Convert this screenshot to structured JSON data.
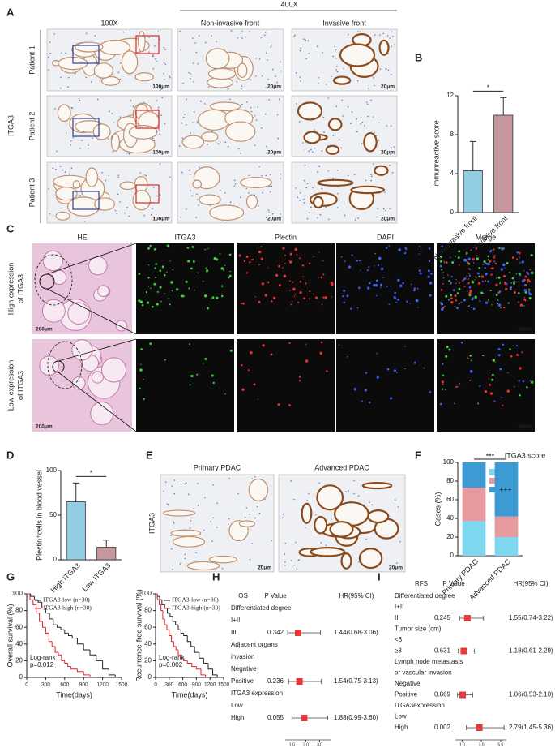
{
  "figure": {
    "panel_labels": [
      "A",
      "B",
      "C",
      "D",
      "E",
      "F",
      "G",
      "H",
      "I"
    ],
    "a": {
      "mag_low": "100X",
      "mag_high": "400X",
      "col_noninvasive": "Non-invasive front",
      "col_invasive": "Invasive front",
      "stain": "ITGA3",
      "patients": [
        "Patient 1",
        "Patient 2",
        "Patient 3"
      ],
      "scale_low": "100μm",
      "scale_high": "20μm"
    },
    "c": {
      "columns": [
        "HE",
        "ITGA3",
        "Plectin",
        "DAPI",
        "Merge"
      ],
      "rows": [
        [
          "High expression",
          "of ITGA3"
        ],
        [
          "Low expression",
          "of ITGA3"
        ]
      ],
      "scale_he": "200μm",
      "scale_if": "20μm"
    },
    "e": {
      "columns": [
        "Primary PDAC",
        "Advanced PDAC"
      ],
      "stain": "ITGA3",
      "scale": "20μm"
    }
  },
  "chart_data": [
    {
      "type": "bar",
      "ylabel": "Immunreactive score",
      "categories": [
        "Non-invasive front",
        "Invasive front"
      ],
      "values": [
        4.3,
        10
      ],
      "errors": [
        3,
        1.8
      ],
      "colors": [
        "#92cde3",
        "#c6979c"
      ],
      "ylim": [
        0,
        12
      ],
      "yticks": [
        0,
        4,
        8,
        12
      ],
      "significance": "*"
    },
    {
      "type": "bar",
      "ylabel": "Plectin⁺cells in blood vessel",
      "categories": [
        "High ITGA3",
        "Low ITGA3"
      ],
      "values": [
        65,
        14
      ],
      "errors": [
        21,
        8
      ],
      "colors": [
        "#92cde3",
        "#c6979c"
      ],
      "ylim": [
        0,
        100
      ],
      "yticks": [
        0,
        50,
        100
      ],
      "significance": "*"
    },
    {
      "type": "stacked_bar",
      "ylabel": "Cases (%)",
      "categories": [
        "Primary PDAC",
        "Advanced PDAC"
      ],
      "legend_title": "ITGA3 score",
      "series": [
        {
          "name": "+",
          "color": "#7fd7ef",
          "values": [
            37,
            20
          ]
        },
        {
          "name": "++",
          "color": "#e79aa0",
          "values": [
            36,
            22
          ]
        },
        {
          "name": "+++",
          "color": "#3d9bd4",
          "values": [
            27,
            58
          ]
        }
      ],
      "ylim": [
        0,
        100
      ],
      "yticks": [
        0,
        20,
        40,
        60,
        80,
        100
      ],
      "significance": "***"
    },
    {
      "type": "km",
      "ylabel": "Overall survival (%)",
      "xlabel": "Time(days)",
      "xlim": [
        0,
        1500
      ],
      "xticks": [
        0,
        300,
        600,
        900,
        1200,
        1500
      ],
      "ylim": [
        0,
        100
      ],
      "yticks": [
        0,
        20,
        40,
        60,
        80,
        100
      ],
      "series": [
        {
          "name": "ITGA3-low (n=30)",
          "color": "#222222",
          "x": [
            0,
            60,
            120,
            180,
            240,
            300,
            360,
            420,
            480,
            540,
            600,
            660,
            720,
            800,
            900,
            1000,
            1100,
            1200,
            1300,
            1400
          ],
          "values": [
            100,
            97,
            93,
            90,
            83,
            77,
            70,
            63,
            60,
            57,
            53,
            50,
            47,
            40,
            33,
            27,
            20,
            10,
            3,
            0
          ]
        },
        {
          "name": "ITGA3-high (n=30)",
          "color": "#e0242a",
          "x": [
            0,
            50,
            100,
            150,
            200,
            250,
            300,
            350,
            400,
            450,
            500,
            550,
            600,
            650,
            700,
            800,
            900,
            1000
          ],
          "values": [
            100,
            93,
            87,
            77,
            67,
            60,
            53,
            43,
            37,
            30,
            27,
            20,
            17,
            13,
            10,
            7,
            3,
            0
          ]
        }
      ],
      "annotation": [
        "Log-rank",
        "p=0.012"
      ]
    },
    {
      "type": "km",
      "ylabel": "Recurrence-free survival (%)",
      "xlabel": "Time(days)",
      "xlim": [
        0,
        1500
      ],
      "xticks": [
        0,
        300,
        600,
        900,
        1200,
        1500
      ],
      "ylim": [
        0,
        100
      ],
      "yticks": [
        0,
        20,
        40,
        60,
        80,
        100
      ],
      "series": [
        {
          "name": "ITGA3-low (n=30)",
          "color": "#222222",
          "x": [
            0,
            40,
            90,
            140,
            200,
            260,
            320,
            380,
            440,
            500,
            560,
            620,
            700,
            780,
            860,
            960,
            1060,
            1160,
            1260,
            1360
          ],
          "values": [
            100,
            97,
            93,
            87,
            83,
            77,
            73,
            67,
            63,
            57,
            53,
            50,
            43,
            37,
            30,
            23,
            17,
            10,
            3,
            0
          ]
        },
        {
          "name": "ITGA3-high (n=30)",
          "color": "#e0242a",
          "x": [
            0,
            40,
            80,
            120,
            160,
            200,
            250,
            300,
            350,
            400,
            450,
            500,
            560,
            620,
            700,
            800,
            900,
            1000,
            1100
          ],
          "values": [
            100,
            93,
            87,
            80,
            70,
            63,
            57,
            50,
            43,
            37,
            33,
            27,
            23,
            20,
            17,
            13,
            10,
            3,
            0
          ]
        }
      ],
      "annotation": [
        "Log-rank",
        "p=0.002"
      ]
    },
    {
      "type": "forest",
      "headers": [
        "OS",
        "P Value",
        "HR(95% CI)"
      ],
      "color": "#e2393b",
      "xlim": [
        0.5,
        3.8
      ],
      "xticks": [
        {
          "value": 1,
          "label": "1.0"
        },
        {
          "value": 2,
          "label": "2.0"
        },
        {
          "value": 3,
          "label": "3.0"
        }
      ],
      "rows": [
        {
          "label": "Differentiated degree"
        },
        {
          "label": "I+II"
        },
        {
          "label": "III",
          "p": 0.342,
          "hr": 1.44,
          "lo": 0.68,
          "hi": 3.06,
          "hr_label": "1.44(0.68-3.06)"
        },
        {
          "label": "Adjacent organs"
        },
        {
          "label": "invasion"
        },
        {
          "label": "Negative"
        },
        {
          "label": "Positive",
          "p": 0.236,
          "hr": 1.54,
          "lo": 0.75,
          "hi": 3.13,
          "hr_label": "1.54(0.75-3.13)"
        },
        {
          "label": "ITGA3 expression"
        },
        {
          "label": "Low"
        },
        {
          "label": "High",
          "p": 0.055,
          "hr": 1.88,
          "lo": 0.99,
          "hi": 3.6,
          "hr_label": "1.88(0.99-3.60)"
        }
      ]
    },
    {
      "type": "forest",
      "headers": [
        "RFS",
        "P Value",
        "HR(95% CI)"
      ],
      "color": "#e2393b",
      "xlim": [
        0.3,
        5.6
      ],
      "xticks": [
        {
          "value": 1,
          "label": "1.0"
        },
        {
          "value": 3,
          "label": "3.0"
        },
        {
          "value": 5,
          "label": "5.0"
        }
      ],
      "rows": [
        {
          "label": "Differentiated degree"
        },
        {
          "label": "I+II"
        },
        {
          "label": "III",
          "p": 0.245,
          "hr": 1.55,
          "lo": 0.74,
          "hi": 3.22,
          "hr_label": "1.55(0.74-3.22)"
        },
        {
          "label": "Tumor size (cm)"
        },
        {
          "label": "<3"
        },
        {
          "label": "≥3",
          "p": 0.631,
          "hr": 1.18,
          "lo": 0.61,
          "hi": 2.29,
          "hr_label": "1.18(0.61-2.29)"
        },
        {
          "label": "Lymph node metastasis"
        },
        {
          "label": "or vascular invasion"
        },
        {
          "label": "Negative"
        },
        {
          "label": "Positive",
          "p": 0.869,
          "hr": 1.06,
          "lo": 0.53,
          "hi": 2.1,
          "hr_label": "1.06(0.53-2.10)"
        },
        {
          "label": "ITGA3expression"
        },
        {
          "label": "Low"
        },
        {
          "label": "High",
          "p": 0.002,
          "hr": 2.79,
          "lo": 1.45,
          "hi": 5.36,
          "hr_label": "2.79(1.45-5.36)"
        }
      ]
    }
  ]
}
